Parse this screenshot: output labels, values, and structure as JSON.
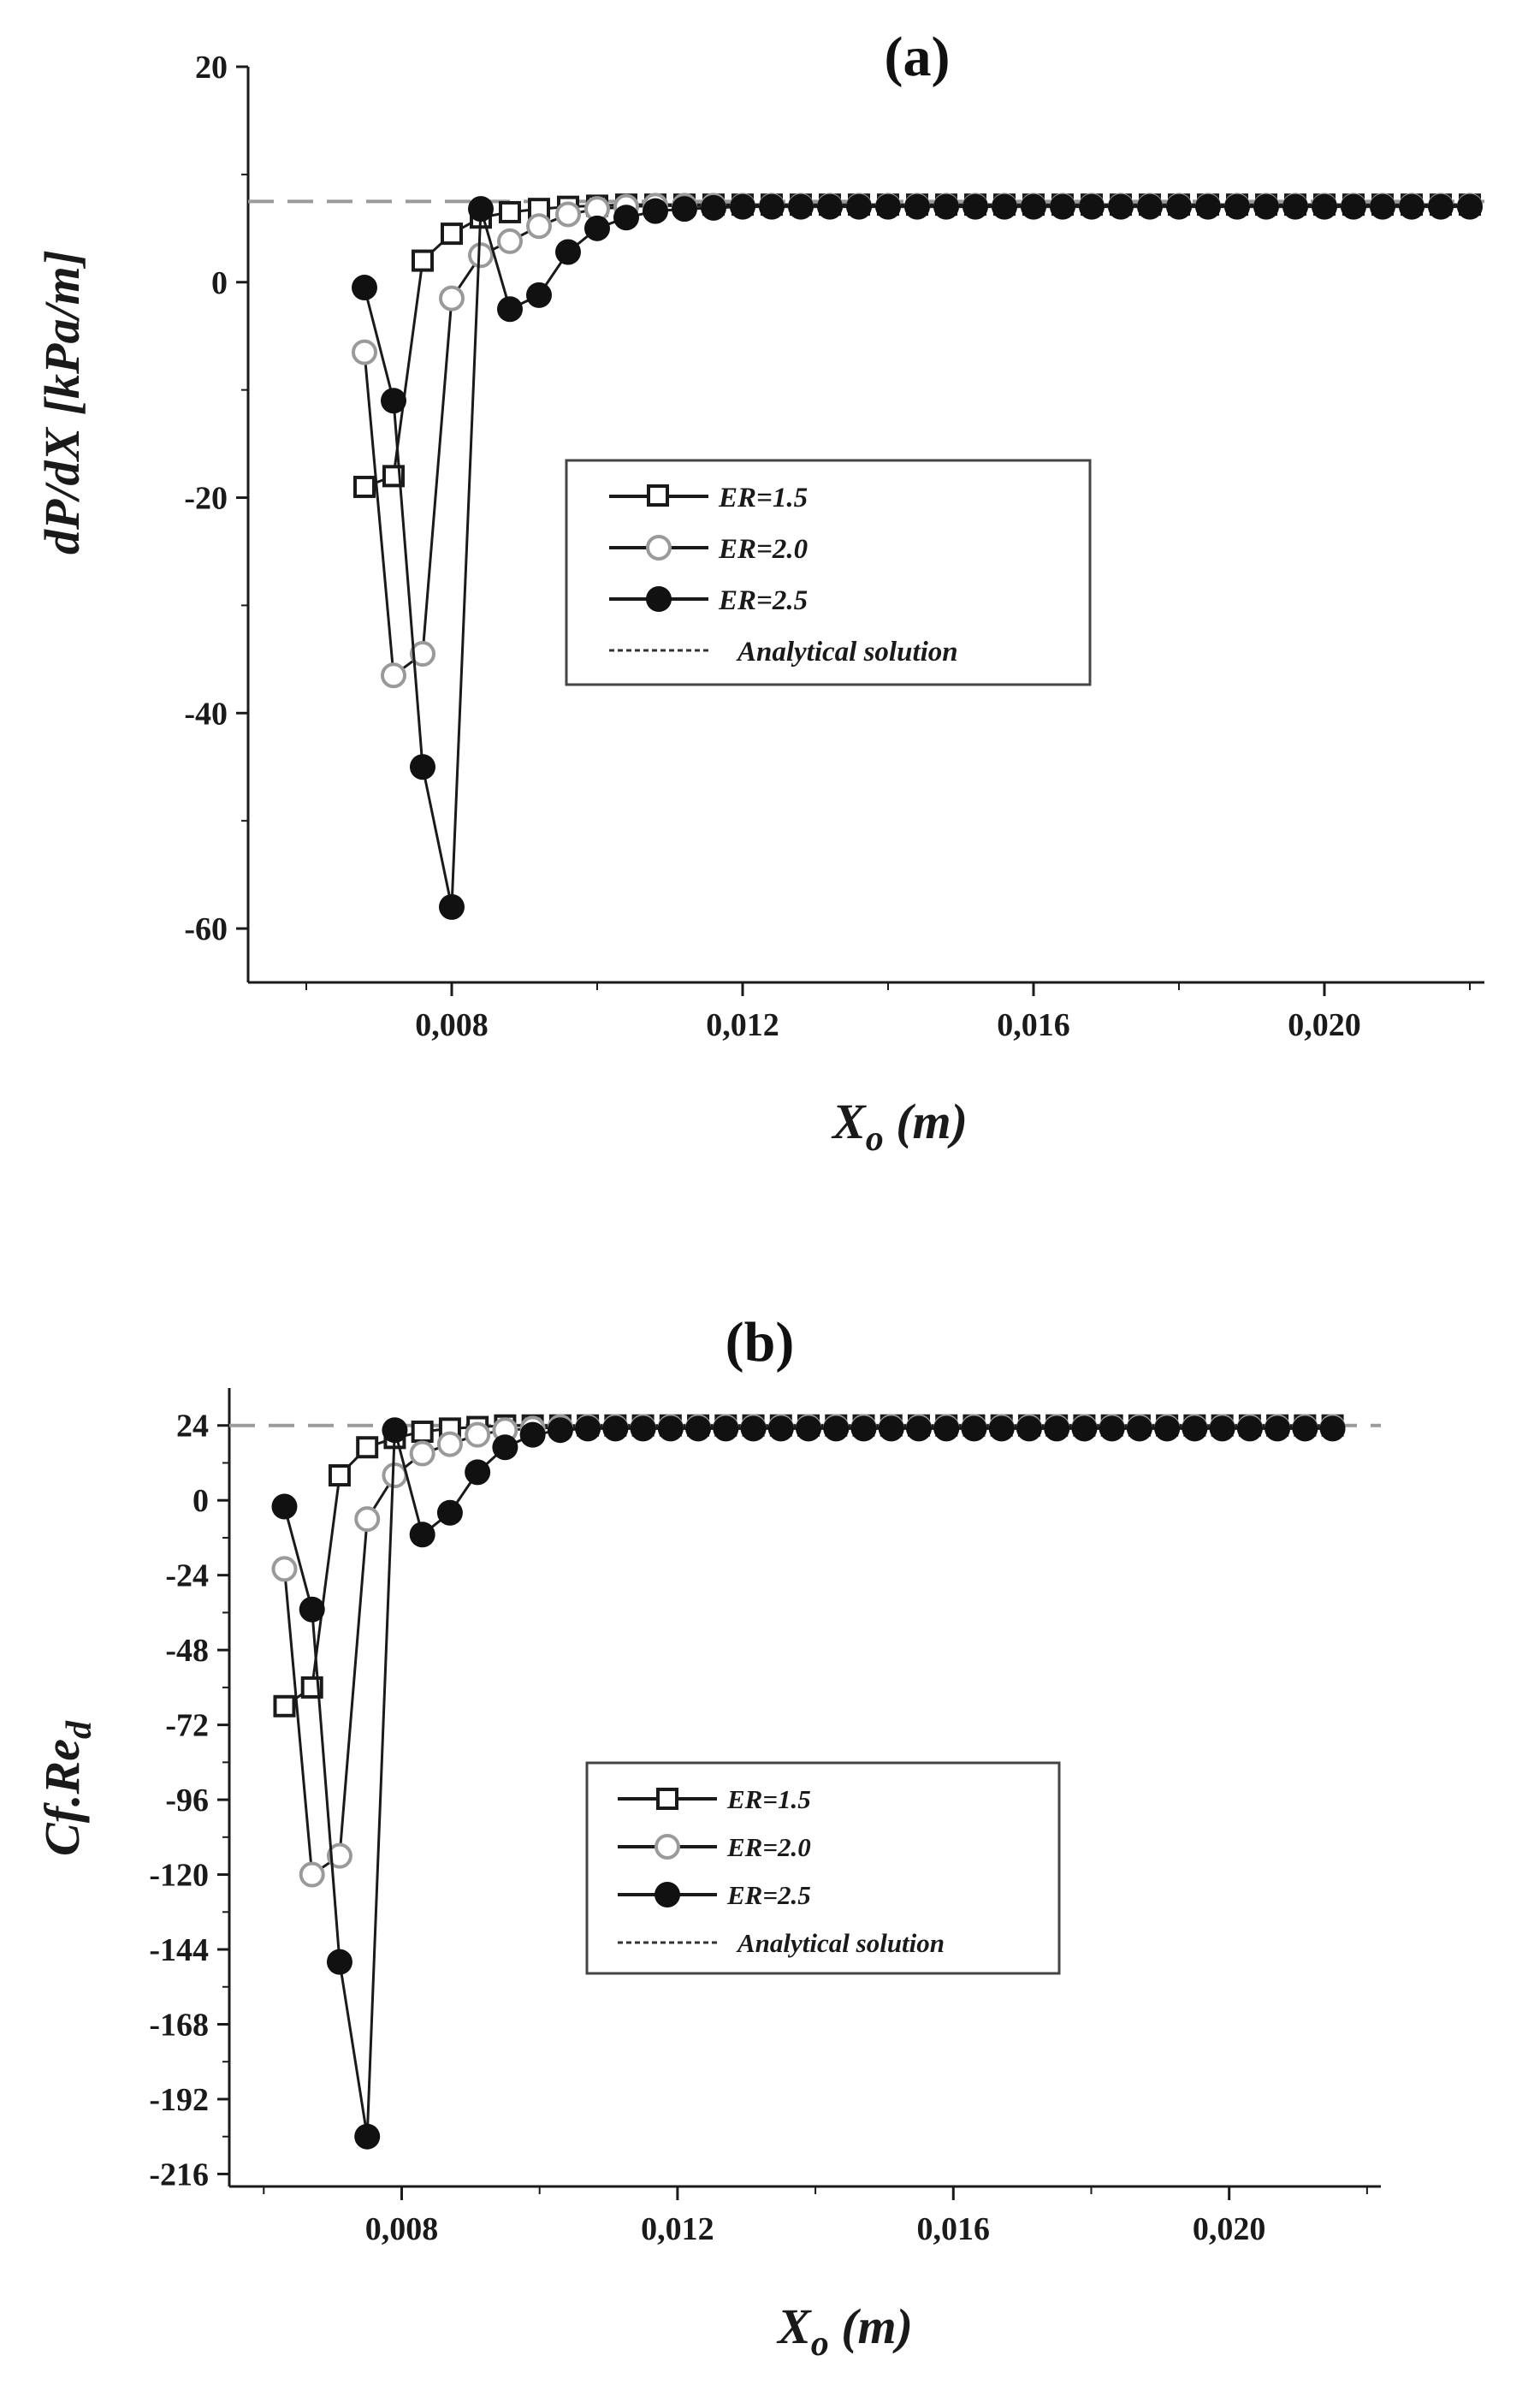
{
  "chart_data": [
    {
      "type": "line",
      "panel_label": "(a)",
      "ylabel": "dP/dX  [kPa/m]",
      "xlabel_main": "X",
      "xlabel_sub": "o",
      "xlabel_rest": " (m)",
      "xlim": [
        0.0052,
        0.0222
      ],
      "ylim": [
        -65,
        20
      ],
      "xticks": [
        {
          "value": 0.008,
          "label": "0,008"
        },
        {
          "value": 0.012,
          "label": "0,012"
        },
        {
          "value": 0.016,
          "label": "0,016"
        },
        {
          "value": 0.02,
          "label": "0,020"
        }
      ],
      "yticks": [
        {
          "value": 20,
          "label": "20"
        },
        {
          "value": 0,
          "label": "0"
        },
        {
          "value": -20,
          "label": "-20"
        },
        {
          "value": -40,
          "label": "-40"
        },
        {
          "value": -60,
          "label": "-60"
        }
      ],
      "reference_line": {
        "name": "Analytical solution",
        "y": 7.5
      },
      "legend_position": "center-right",
      "series": [
        {
          "name": "ER=1.5",
          "marker": "open-square",
          "x": [
            0.0068,
            0.0072,
            0.0076,
            0.008,
            0.0084,
            0.0088,
            0.0092,
            0.0096,
            0.01,
            0.0104,
            0.0108,
            0.0112,
            0.0116,
            0.012,
            0.0124,
            0.0128,
            0.0132,
            0.0136,
            0.014,
            0.0144,
            0.0148,
            0.0152,
            0.0156,
            0.016,
            0.0164,
            0.0168,
            0.0172,
            0.0176,
            0.018,
            0.0184,
            0.0188,
            0.0192,
            0.0196,
            0.02,
            0.0204,
            0.0208,
            0.0212,
            0.0216,
            0.022
          ],
          "y": [
            -19,
            -18,
            2,
            4.5,
            6,
            6.5,
            6.8,
            7,
            7.1,
            7.2,
            7.2,
            7.2,
            7.2,
            7.2,
            7.2,
            7.2,
            7.2,
            7.2,
            7.2,
            7.2,
            7.2,
            7.2,
            7.2,
            7.2,
            7.2,
            7.2,
            7.2,
            7.2,
            7.2,
            7.2,
            7.2,
            7.2,
            7.2,
            7.2,
            7.2,
            7.2,
            7.2,
            7.2,
            7.2
          ]
        },
        {
          "name": "ER=2.0",
          "marker": "open-circle",
          "x": [
            0.0068,
            0.0072,
            0.0076,
            0.008,
            0.0084,
            0.0088,
            0.0092,
            0.0096,
            0.01,
            0.0104,
            0.0108,
            0.0112,
            0.0116,
            0.012,
            0.0124,
            0.0128,
            0.0132,
            0.0136,
            0.014,
            0.0144,
            0.0148,
            0.0152,
            0.0156,
            0.016,
            0.0164,
            0.0168,
            0.0172,
            0.0176,
            0.018,
            0.0184,
            0.0188,
            0.0192,
            0.0196,
            0.02,
            0.0204,
            0.0208,
            0.0212,
            0.0216,
            0.022
          ],
          "y": [
            -6.5,
            -36.5,
            -34.5,
            -1.5,
            2.5,
            3.8,
            5.2,
            6.3,
            6.8,
            7,
            7.1,
            7.1,
            7.1,
            7.1,
            7.1,
            7.1,
            7.1,
            7.1,
            7.1,
            7.1,
            7.1,
            7.1,
            7.1,
            7.1,
            7.1,
            7.1,
            7.1,
            7.1,
            7.1,
            7.1,
            7.1,
            7.1,
            7.1,
            7.1,
            7.1,
            7.1,
            7.1,
            7.1,
            7.1
          ]
        },
        {
          "name": "ER=2.5",
          "marker": "filled-circle",
          "x": [
            0.0068,
            0.0072,
            0.0076,
            0.008,
            0.0084,
            0.0088,
            0.0092,
            0.0096,
            0.01,
            0.0104,
            0.0108,
            0.0112,
            0.0116,
            0.012,
            0.0124,
            0.0128,
            0.0132,
            0.0136,
            0.014,
            0.0144,
            0.0148,
            0.0152,
            0.0156,
            0.016,
            0.0164,
            0.0168,
            0.0172,
            0.0176,
            0.018,
            0.0184,
            0.0188,
            0.0192,
            0.0196,
            0.02,
            0.0204,
            0.0208,
            0.0212,
            0.0216,
            0.022
          ],
          "y": [
            -0.5,
            -11,
            -45,
            -58,
            6.8,
            -2.5,
            -1.2,
            2.8,
            5,
            6,
            6.6,
            6.8,
            6.9,
            7,
            7,
            7,
            7,
            7,
            7,
            7,
            7,
            7,
            7,
            7,
            7,
            7,
            7,
            7,
            7,
            7,
            7,
            7,
            7,
            7,
            7,
            7,
            7,
            7,
            7
          ]
        }
      ]
    },
    {
      "type": "line",
      "panel_label": "(b)",
      "ylabel_main": "Cf.Re",
      "ylabel_sub": "d",
      "xlabel_main": "X",
      "xlabel_sub": "o",
      "xlabel_rest": " (m)",
      "xlim": [
        0.0055,
        0.0222
      ],
      "ylim": [
        -220,
        36
      ],
      "xticks": [
        {
          "value": 0.008,
          "label": "0,008"
        },
        {
          "value": 0.012,
          "label": "0,012"
        },
        {
          "value": 0.016,
          "label": "0,016"
        },
        {
          "value": 0.02,
          "label": "0,020"
        }
      ],
      "yticks": [
        {
          "value": 24,
          "label": "24"
        },
        {
          "value": 0,
          "label": "0"
        },
        {
          "value": -24,
          "label": "-24"
        },
        {
          "value": -48,
          "label": "-48"
        },
        {
          "value": -72,
          "label": "-72"
        },
        {
          "value": -96,
          "label": "-96"
        },
        {
          "value": -120,
          "label": "-120"
        },
        {
          "value": -144,
          "label": "-144"
        },
        {
          "value": -168,
          "label": "-168"
        },
        {
          "value": -192,
          "label": "-192"
        },
        {
          "value": -216,
          "label": "-216"
        }
      ],
      "reference_line": {
        "name": "Analytical solution",
        "y": 24
      },
      "legend_position": "center-right",
      "series": [
        {
          "name": "ER=1.5",
          "marker": "open-square",
          "x": [
            0.0063,
            0.0067,
            0.0071,
            0.0075,
            0.0079,
            0.0083,
            0.0087,
            0.0091,
            0.0095,
            0.0099,
            0.0103,
            0.0107,
            0.0111,
            0.0115,
            0.0119,
            0.0123,
            0.0127,
            0.0131,
            0.0135,
            0.0139,
            0.0143,
            0.0147,
            0.0151,
            0.0155,
            0.0159,
            0.0163,
            0.0167,
            0.0171,
            0.0175,
            0.0179,
            0.0183,
            0.0187,
            0.0191,
            0.0195,
            0.0199,
            0.0203,
            0.0207,
            0.0211,
            0.0215
          ],
          "y": [
            -66,
            -60,
            8,
            17,
            20,
            22,
            23,
            23.5,
            24,
            24,
            24,
            24,
            24,
            24,
            24,
            24,
            24,
            24,
            24,
            24,
            24,
            24,
            24,
            24,
            24,
            24,
            24,
            24,
            24,
            24,
            24,
            24,
            24,
            24,
            24,
            24,
            24,
            24,
            24
          ]
        },
        {
          "name": "ER=2.0",
          "marker": "open-circle",
          "x": [
            0.0063,
            0.0067,
            0.0071,
            0.0075,
            0.0079,
            0.0083,
            0.0087,
            0.0091,
            0.0095,
            0.0099,
            0.0103,
            0.0107,
            0.0111,
            0.0115,
            0.0119,
            0.0123,
            0.0127,
            0.0131,
            0.0135,
            0.0139,
            0.0143,
            0.0147,
            0.0151,
            0.0155,
            0.0159,
            0.0163,
            0.0167,
            0.0171,
            0.0175,
            0.0179,
            0.0183,
            0.0187,
            0.0191,
            0.0195,
            0.0199,
            0.0203,
            0.0207,
            0.0211,
            0.0215
          ],
          "y": [
            -22,
            -120,
            -114,
            -6,
            8,
            15,
            18,
            21,
            22.5,
            23,
            23.5,
            23.5,
            23.5,
            23.5,
            23.5,
            23.5,
            23.5,
            23.5,
            23.5,
            23.5,
            23.5,
            23.5,
            23.5,
            23.5,
            23.5,
            23.5,
            23.5,
            23.5,
            23.5,
            23.5,
            23.5,
            23.5,
            23.5,
            23.5,
            23.5,
            23.5,
            23.5,
            23.5,
            23.5
          ]
        },
        {
          "name": "ER=2.5",
          "marker": "filled-circle",
          "x": [
            0.0063,
            0.0067,
            0.0071,
            0.0075,
            0.0079,
            0.0083,
            0.0087,
            0.0091,
            0.0095,
            0.0099,
            0.0103,
            0.0107,
            0.0111,
            0.0115,
            0.0119,
            0.0123,
            0.0127,
            0.0131,
            0.0135,
            0.0139,
            0.0143,
            0.0147,
            0.0151,
            0.0155,
            0.0159,
            0.0163,
            0.0167,
            0.0171,
            0.0175,
            0.0179,
            0.0183,
            0.0187,
            0.0191,
            0.0195,
            0.0199,
            0.0203,
            0.0207,
            0.0211,
            0.0215
          ],
          "y": [
            -2,
            -35,
            -148,
            -204,
            22.5,
            -11,
            -4,
            9,
            17,
            21,
            22.5,
            23,
            23,
            23,
            23,
            23,
            23,
            23,
            23,
            23,
            23,
            23,
            23,
            23,
            23,
            23,
            23,
            23,
            23,
            23,
            23,
            23,
            23,
            23,
            23,
            23,
            23,
            23,
            23
          ]
        }
      ]
    }
  ]
}
